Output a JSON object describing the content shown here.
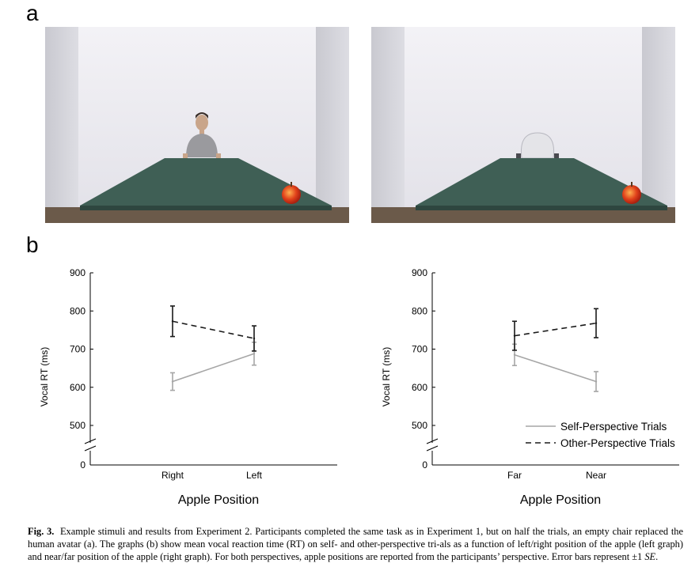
{
  "panel_a_label": "a",
  "panel_b_label": "b",
  "caption": {
    "fig_label": "Fig. 3.",
    "text": "Example stimuli and results from Experiment 2. Participants completed the same task as in Experiment 1, but on half the trials, an empty chair replaced the human avatar (a). The graphs (b) show mean vocal reaction time (RT) on self- and other-perspective tri-als as a function of left/right position of the apple (left graph) and near/far position of the apple (right graph). For both perspectives, apple positions are reported from the participants’ perspective. Error bars represent ±1 ",
    "se": "SE",
    "end": "."
  },
  "colors": {
    "self": "#a6a6a6",
    "other": "#1a1a1a",
    "table": "#3f5f55",
    "wall": "#ecebf0",
    "apple": "#e0401a"
  },
  "chart_data": [
    {
      "type": "line",
      "categories": [
        "Right",
        "Left"
      ],
      "xlabel": "Apple Position",
      "ylabel": "Vocal RT (ms)",
      "y_ticks": [
        "0",
        "500",
        "600",
        "700",
        "800",
        "900"
      ],
      "axis_break": true,
      "ylim": [
        500,
        900
      ],
      "series": [
        {
          "name": "Self-Perspective Trials",
          "style": "solid",
          "values": [
            615,
            688
          ],
          "errors": [
            23,
            30
          ]
        },
        {
          "name": "Other-Perspective Trials",
          "style": "dashed",
          "values": [
            773,
            728
          ],
          "errors": [
            40,
            33
          ]
        }
      ]
    },
    {
      "type": "line",
      "categories": [
        "Far",
        "Near"
      ],
      "xlabel": "Apple Position",
      "ylabel": "Vocal RT (ms)",
      "y_ticks": [
        "0",
        "500",
        "600",
        "700",
        "800",
        "900"
      ],
      "axis_break": true,
      "ylim": [
        500,
        900
      ],
      "legend": "bottom-right",
      "series": [
        {
          "name": "Self-Perspective Trials",
          "style": "solid",
          "values": [
            685,
            615
          ],
          "errors": [
            28,
            26
          ]
        },
        {
          "name": "Other-Perspective Trials",
          "style": "dashed",
          "values": [
            735,
            768
          ],
          "errors": [
            38,
            38
          ]
        }
      ]
    }
  ]
}
